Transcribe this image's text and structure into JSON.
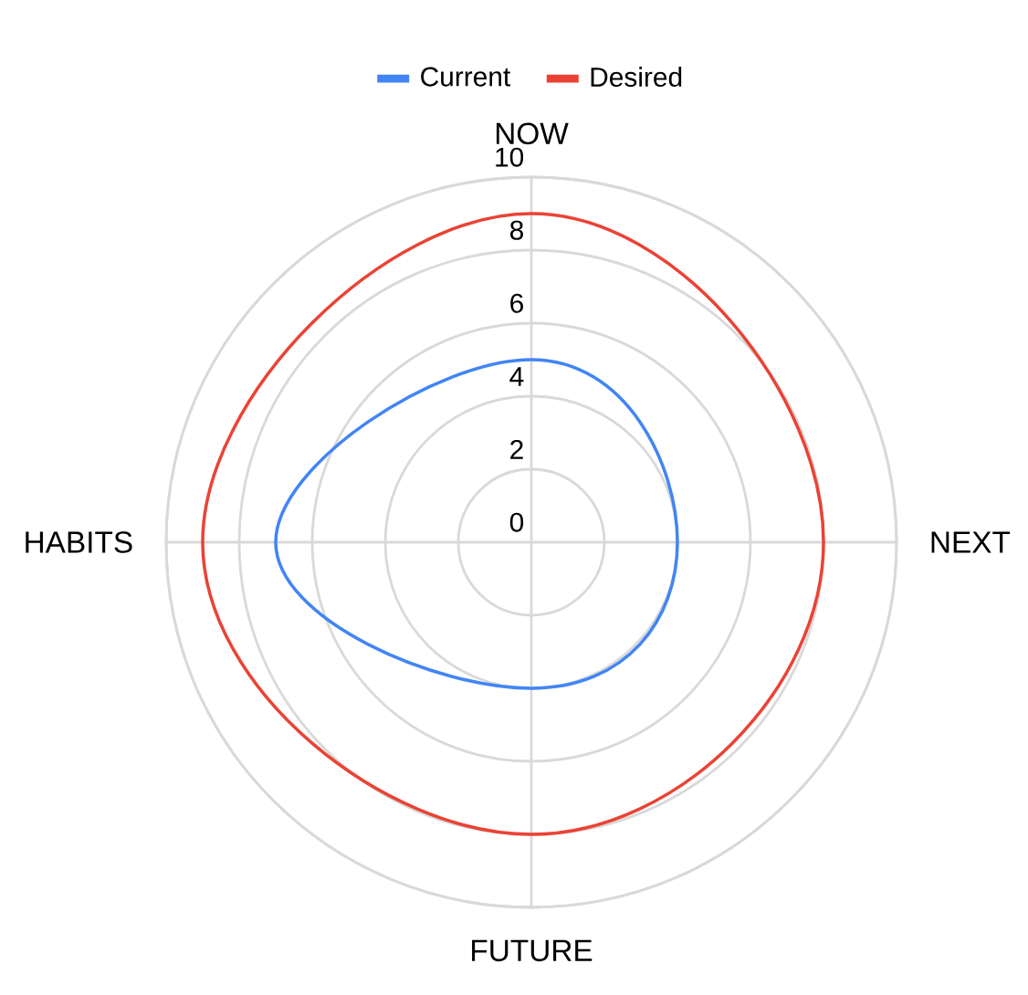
{
  "chart_data": {
    "type": "radar",
    "categories": [
      "NOW",
      "NEXT",
      "FUTURE",
      "HABITS"
    ],
    "series": [
      {
        "name": "Current",
        "color": "#4285f4",
        "values": [
          5,
          4,
          4,
          7
        ]
      },
      {
        "name": "Desired",
        "color": "#ea4335",
        "values": [
          9,
          8,
          8,
          9
        ]
      }
    ],
    "ylim": [
      0,
      10
    ],
    "yticks": [
      0,
      2,
      4,
      6,
      8,
      10
    ],
    "grid": true,
    "legend": "top"
  }
}
